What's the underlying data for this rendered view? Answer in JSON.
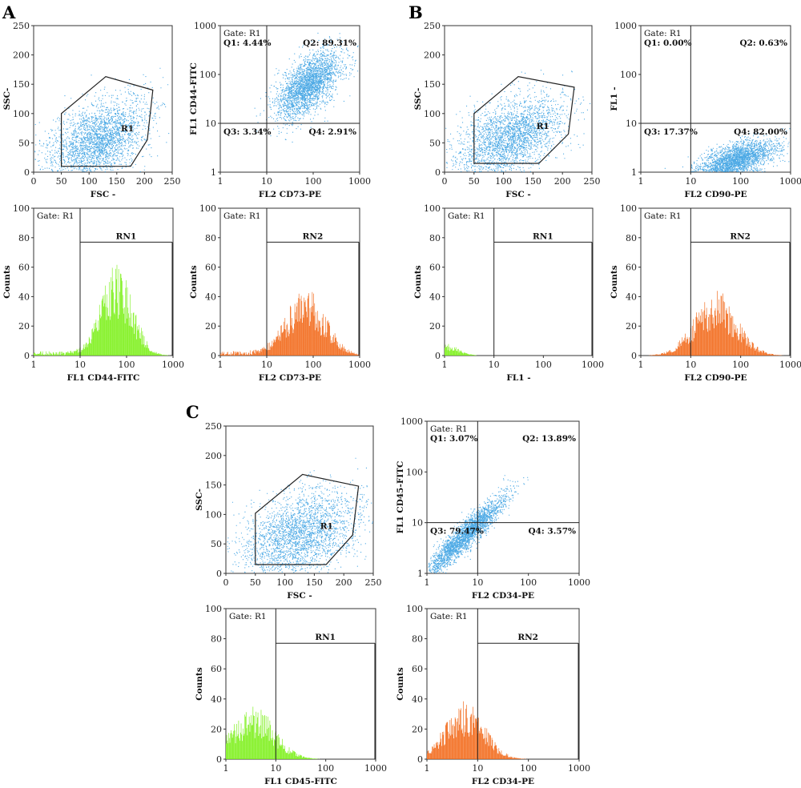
{
  "colors": {
    "scatter": "#2f9be0",
    "green": "#7ef01c",
    "orange": "#f26a1b",
    "frame": "#333333"
  },
  "chart_data": [
    {
      "id": "A1",
      "type": "scatter",
      "panel_letter": "A",
      "xlabel": "FSC -",
      "ylabel": "SSC-",
      "xscale": "linear",
      "yscale": "linear",
      "xlim": [
        0,
        250
      ],
      "ylim": [
        0,
        250
      ],
      "xticks": [
        "0",
        "50",
        "100",
        "150",
        "200",
        "250"
      ],
      "yticks": [
        "0",
        "50",
        "100",
        "150",
        "200",
        "250"
      ],
      "gate": {
        "label": "R1",
        "polygon": [
          [
            50,
            10
          ],
          [
            50,
            100
          ],
          [
            130,
            163
          ],
          [
            215,
            140
          ],
          [
            205,
            55
          ],
          [
            175,
            10
          ]
        ]
      },
      "cloud": {
        "cx": 115,
        "cy": 55,
        "sx": 45,
        "sy": 35,
        "rho": 0.45
      }
    },
    {
      "id": "A2",
      "type": "scatter",
      "gate_label": "Gate: R1",
      "xlabel": "FL2  CD73-PE",
      "ylabel": "FL1  CD44-FITC",
      "xscale": "log",
      "yscale": "log",
      "xlim": [
        1,
        1000
      ],
      "ylim": [
        1,
        1000
      ],
      "xticks": [
        "1",
        "10",
        "100",
        "1000"
      ],
      "yticks": [
        "1",
        "10",
        "100",
        "1000"
      ],
      "quadrant_split": [
        10,
        10
      ],
      "quadrants": [
        {
          "label": "Q1: 4.44%",
          "pos": "tl"
        },
        {
          "label": "Q2: 89.31%",
          "pos": "tr"
        },
        {
          "label": "Q3: 3.34%",
          "pos": "bl"
        },
        {
          "label": "Q4: 2.91%",
          "pos": "br"
        }
      ],
      "cloud": {
        "cx": 1.9,
        "cy": 1.8,
        "sx": 0.35,
        "sy": 0.35,
        "rho": 0.6
      }
    },
    {
      "id": "A3",
      "type": "histogram",
      "gate_label": "Gate: R1",
      "region_label": "RN1",
      "region_range": [
        10,
        1000
      ],
      "region_y": 77,
      "xlabel": "FL1  CD44-FITC",
      "ylabel": "Counts",
      "xscale": "log",
      "xlim": [
        1,
        1000
      ],
      "ylim": [
        0,
        100
      ],
      "xticks": [
        "1",
        "10",
        "100",
        "1000"
      ],
      "yticks": [
        "0",
        "20",
        "40",
        "60",
        "80",
        "100"
      ],
      "color": "green",
      "peak_log": 1.8,
      "peak_count": 45,
      "spread": 0.33,
      "floor": 3
    },
    {
      "id": "A4",
      "type": "histogram",
      "gate_label": "Gate: R1",
      "region_label": "RN2",
      "region_range": [
        10,
        1000
      ],
      "region_y": 77,
      "xlabel": "FL2  CD73-PE",
      "ylabel": "Counts",
      "xscale": "log",
      "xlim": [
        1,
        1000
      ],
      "ylim": [
        0,
        100
      ],
      "xticks": [
        "1",
        "10",
        "100",
        "1000"
      ],
      "yticks": [
        "0",
        "20",
        "40",
        "60",
        "80",
        "100"
      ],
      "color": "orange",
      "peak_log": 1.85,
      "peak_count": 32,
      "spread": 0.42,
      "floor": 3
    },
    {
      "id": "B1",
      "type": "scatter",
      "panel_letter": "B",
      "xlabel": "FSC -",
      "ylabel": "SSC-",
      "xscale": "linear",
      "yscale": "linear",
      "xlim": [
        0,
        250
      ],
      "ylim": [
        0,
        250
      ],
      "xticks": [
        "0",
        "50",
        "100",
        "150",
        "200",
        "250"
      ],
      "yticks": [
        "0",
        "50",
        "100",
        "150",
        "200",
        "250"
      ],
      "gate": {
        "label": "R1",
        "polygon": [
          [
            50,
            15
          ],
          [
            50,
            100
          ],
          [
            125,
            163
          ],
          [
            220,
            145
          ],
          [
            210,
            65
          ],
          [
            160,
            15
          ]
        ]
      },
      "cloud": {
        "cx": 110,
        "cy": 60,
        "sx": 45,
        "sy": 35,
        "rho": 0.45
      }
    },
    {
      "id": "B2",
      "type": "scatter",
      "gate_label": "Gate: R1",
      "xlabel": "FL2  CD90-PE",
      "ylabel": "FL1 -",
      "xscale": "log",
      "yscale": "log",
      "xlim": [
        1,
        1000
      ],
      "ylim": [
        1,
        1000
      ],
      "xticks": [
        "1",
        "10",
        "100",
        "1000"
      ],
      "yticks": [
        "1",
        "10",
        "100",
        "1000"
      ],
      "quadrant_split": [
        10,
        10
      ],
      "quadrants": [
        {
          "label": "Q1: 0.00%",
          "pos": "tl"
        },
        {
          "label": "Q2: 0.63%",
          "pos": "tr"
        },
        {
          "label": "Q3: 17.37%",
          "pos": "bl"
        },
        {
          "label": "Q4: 82.00%",
          "pos": "br"
        }
      ],
      "cloud": {
        "cx": 1.9,
        "cy": 0.25,
        "sx": 0.4,
        "sy": 0.2,
        "rho": 0.6
      }
    },
    {
      "id": "B3",
      "type": "histogram",
      "gate_label": "Gate: R1",
      "region_label": "RN1",
      "region_range": [
        10,
        1000
      ],
      "region_y": 77,
      "xlabel": "FL1 -",
      "ylabel": "Counts",
      "xscale": "log",
      "xlim": [
        1,
        1000
      ],
      "ylim": [
        0,
        100
      ],
      "xticks": [
        "1",
        "10",
        "100",
        "1000"
      ],
      "yticks": [
        "0",
        "20",
        "40",
        "60",
        "80",
        "100"
      ],
      "color": "green",
      "peak_log": 0.0,
      "peak_count": 6,
      "spread": 0.25,
      "floor": 0
    },
    {
      "id": "B4",
      "type": "histogram",
      "gate_label": "Gate: R1",
      "region_label": "RN2",
      "region_range": [
        10,
        1000
      ],
      "region_y": 77,
      "xlabel": "FL2  CD90-PE",
      "ylabel": "Counts",
      "xscale": "log",
      "xlim": [
        1,
        1000
      ],
      "ylim": [
        0,
        100
      ],
      "xticks": [
        "1",
        "10",
        "100",
        "1000"
      ],
      "yticks": [
        "0",
        "20",
        "40",
        "60",
        "80",
        "100"
      ],
      "color": "orange",
      "peak_log": 1.5,
      "peak_count": 31,
      "spread": 0.42,
      "floor": 0
    },
    {
      "id": "C1",
      "type": "scatter",
      "panel_letter": "C",
      "xlabel": "FSC -",
      "ylabel": "SSC-",
      "xscale": "linear",
      "yscale": "linear",
      "xlim": [
        0,
        250
      ],
      "ylim": [
        0,
        250
      ],
      "xticks": [
        "0",
        "50",
        "100",
        "150",
        "200",
        "250"
      ],
      "yticks": [
        "0",
        "50",
        "100",
        "150",
        "200",
        "250"
      ],
      "gate": {
        "label": "R1",
        "polygon": [
          [
            50,
            15
          ],
          [
            50,
            102
          ],
          [
            130,
            168
          ],
          [
            225,
            148
          ],
          [
            215,
            65
          ],
          [
            170,
            15
          ]
        ]
      },
      "cloud": {
        "cx": 125,
        "cy": 65,
        "sx": 50,
        "sy": 38,
        "rho": 0.4
      }
    },
    {
      "id": "C2",
      "type": "scatter",
      "gate_label": "Gate: R1",
      "xlabel": "FL2  CD34-PE",
      "ylabel": "FL1  CD45-FITC",
      "xscale": "log",
      "yscale": "log",
      "xlim": [
        1,
        1000
      ],
      "ylim": [
        1,
        1000
      ],
      "xticks": [
        "1",
        "10",
        "100",
        "1000"
      ],
      "yticks": [
        "1",
        "10",
        "100",
        "1000"
      ],
      "quadrant_split": [
        10,
        10
      ],
      "quadrants": [
        {
          "label": "Q1: 3.07%",
          "pos": "tl"
        },
        {
          "label": "Q2: 13.89%",
          "pos": "tr"
        },
        {
          "label": "Q3: 79.47%",
          "pos": "bl"
        },
        {
          "label": "Q4: 3.57%",
          "pos": "br"
        }
      ],
      "cloud": {
        "cx": 0.75,
        "cy": 0.75,
        "sx": 0.4,
        "sy": 0.4,
        "rho": 0.93
      }
    },
    {
      "id": "C3",
      "type": "histogram",
      "gate_label": "Gate: R1",
      "region_label": "RN1",
      "region_range": [
        10,
        1000
      ],
      "region_y": 77,
      "xlabel": "FL1  CD45-FITC",
      "ylabel": "Counts",
      "xscale": "log",
      "xlim": [
        1,
        1000
      ],
      "ylim": [
        0,
        100
      ],
      "xticks": [
        "1",
        "10",
        "100",
        "1000"
      ],
      "yticks": [
        "0",
        "20",
        "40",
        "60",
        "80",
        "100"
      ],
      "color": "green",
      "peak_log": 0.55,
      "peak_count": 25,
      "spread": 0.42,
      "floor": 0
    },
    {
      "id": "C4",
      "type": "histogram",
      "gate_label": "Gate: R1",
      "region_label": "RN2",
      "region_range": [
        10,
        1000
      ],
      "region_y": 77,
      "xlabel": "FL2  CD34-PE",
      "ylabel": "Counts",
      "xscale": "log",
      "xlim": [
        1,
        1000
      ],
      "ylim": [
        0,
        100
      ],
      "xticks": [
        "1",
        "10",
        "100",
        "1000"
      ],
      "yticks": [
        "0",
        "20",
        "40",
        "60",
        "80",
        "100"
      ],
      "color": "orange",
      "peak_log": 0.75,
      "peak_count": 27,
      "spread": 0.38,
      "floor": 0
    }
  ]
}
